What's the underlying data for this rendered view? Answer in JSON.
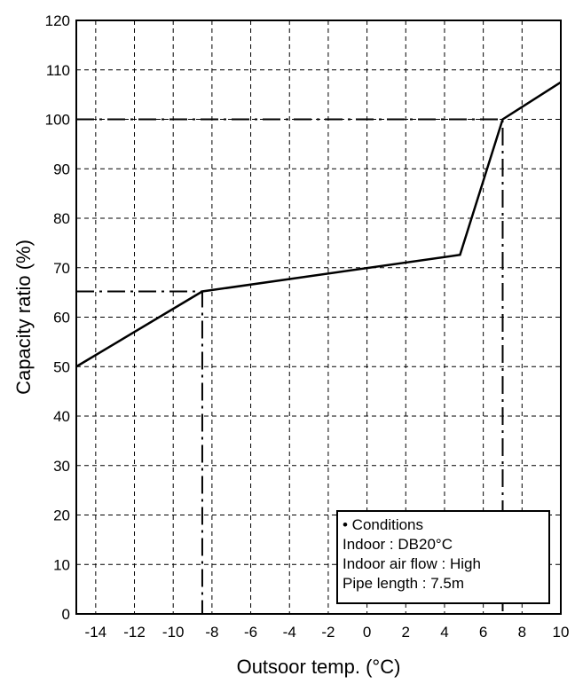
{
  "chart_data": {
    "type": "line",
    "xlabel": "Outsoor temp. (°C)",
    "ylabel": "Capacity ratio (%)",
    "xlim": [
      -15,
      10
    ],
    "ylim": [
      0,
      120
    ],
    "x_ticks": [
      -14,
      -12,
      -10,
      -8,
      -6,
      -4,
      -2,
      0,
      2,
      4,
      6,
      8,
      10
    ],
    "y_ticks": [
      0,
      10,
      20,
      30,
      40,
      50,
      60,
      70,
      80,
      90,
      100,
      110,
      120
    ],
    "grid": true,
    "series": [
      {
        "x": [
          -15,
          -8.5,
          4.8,
          7,
          10
        ],
        "y": [
          50,
          65.2,
          72.6,
          100,
          107.5
        ]
      }
    ],
    "reference_lines": [
      {
        "x": [
          -15,
          -8.5,
          -8.5
        ],
        "y": [
          65.2,
          65.2,
          0
        ]
      },
      {
        "x": [
          -15,
          7,
          7
        ],
        "y": [
          100,
          100,
          0
        ]
      }
    ],
    "legend": {
      "placement": "bottom-right",
      "lines": [
        "• Conditions",
        "Indoor : DB20°C",
        "Indoor air flow : High",
        "Pipe length : 7.5m"
      ]
    }
  }
}
